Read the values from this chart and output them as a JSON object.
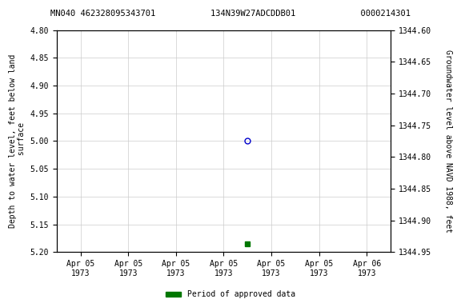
{
  "title": "MN040 462328095343701           134N39W27ADCDDB01             0000214301",
  "ylabel_left": "Depth to water level, feet below land\n surface",
  "ylabel_right": "Groundwater level above NAVD 1988, feet",
  "ylim_left": [
    4.8,
    5.2
  ],
  "ylim_right": [
    1344.6,
    1344.95
  ],
  "yticks_left": [
    4.8,
    4.85,
    4.9,
    4.95,
    5.0,
    5.05,
    5.1,
    5.15,
    5.2
  ],
  "yticks_right": [
    1344.6,
    1344.65,
    1344.7,
    1344.75,
    1344.8,
    1344.85,
    1344.9,
    1344.95
  ],
  "data_open_x": 3.5,
  "data_open_y": 5.0,
  "data_open_color": "#0000cc",
  "data_filled_x": 3.5,
  "data_filled_y": 5.185,
  "data_filled_color": "#007700",
  "xlim": [
    -0.5,
    6.5
  ],
  "xticks": [
    0,
    1,
    2,
    3,
    4,
    5,
    6
  ],
  "xtick_labels_line1": [
    "Apr 05",
    "Apr 05",
    "Apr 05",
    "Apr 05",
    "Apr 05",
    "Apr 05",
    "Apr 06"
  ],
  "xtick_labels_line2": [
    "1973",
    "1973",
    "1973",
    "1973",
    "1973",
    "1973",
    "1973"
  ],
  "grid_color": "#cccccc",
  "background_color": "#ffffff",
  "legend_label": "Period of approved data",
  "legend_color": "#007700",
  "title_fontsize": 7.5,
  "axis_fontsize": 7,
  "tick_fontsize": 7
}
